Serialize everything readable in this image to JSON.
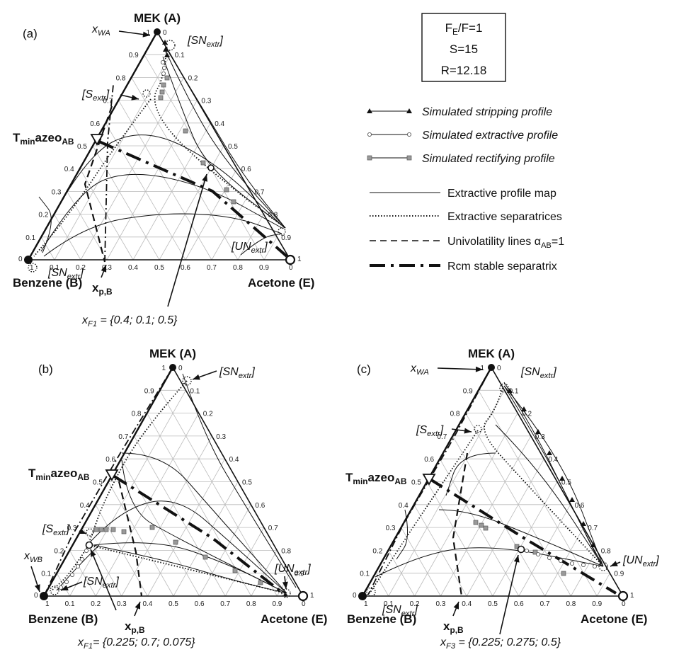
{
  "panels": [
    {
      "letter": "(a)",
      "top_label": "MEK (A)",
      "left_label": "Benzene (B)",
      "right_label": "Acetone (E)",
      "azeo_label": "T",
      "azeo_sub1": "min",
      "azeo_mid": "azeo",
      "azeo_sub2": "AB",
      "feed_label": "x",
      "feed_sub": "F1",
      "feed_value": " = {0.4; 0.1; 0.5}",
      "xp_label": "x",
      "xp_sub": "p,B",
      "annotations": [
        {
          "main": "x",
          "sub": "WA",
          "wrap": false
        },
        {
          "main": "SN",
          "sub": "extr",
          "wrap": true
        },
        {
          "main": "S",
          "sub": "extr",
          "wrap": true
        },
        {
          "main": "SN",
          "sub": "extr",
          "wrap": true
        },
        {
          "main": "UN",
          "sub": "extr",
          "wrap": true
        }
      ]
    },
    {
      "letter": "(b)",
      "top_label": "MEK (A)",
      "left_label": "Benzene (B)",
      "right_label": "Acetone (E)",
      "azeo_label": "T",
      "azeo_sub1": "min",
      "azeo_mid": "azeo",
      "azeo_sub2": "AB",
      "feed_label": "x",
      "feed_sub": "F1",
      "feed_value": "= {0.225; 0.7; 0.075}",
      "xp_label": "x",
      "xp_sub": "p,B",
      "annotations": [
        {
          "main": "SN",
          "sub": "extr",
          "wrap": true
        },
        {
          "main": "S",
          "sub": "extr",
          "wrap": true
        },
        {
          "main": "x",
          "sub": "WB",
          "wrap": false
        },
        {
          "main": "SN",
          "sub": "extr",
          "wrap": true
        },
        {
          "main": "UN",
          "sub": "extr",
          "wrap": true
        }
      ]
    },
    {
      "letter": "(c)",
      "top_label": "MEK (A)",
      "left_label": "Benzene (B)",
      "right_label": "Acetone (E)",
      "azeo_label": "T",
      "azeo_sub1": "min",
      "azeo_mid": "azeo",
      "azeo_sub2": "AB",
      "feed_label": "x",
      "feed_sub": "F3",
      "feed_value": " = {0.225; 0.275; 0.5}",
      "xp_label": "x",
      "xp_sub": "p,B",
      "annotations": [
        {
          "main": "x",
          "sub": "WA",
          "wrap": false
        },
        {
          "main": "SN",
          "sub": "extr",
          "wrap": true
        },
        {
          "main": "S",
          "sub": "extr",
          "wrap": true
        },
        {
          "main": "UN",
          "sub": "extr",
          "wrap": true
        },
        {
          "main": "SN",
          "sub": "extr",
          "wrap": true
        }
      ]
    }
  ],
  "ticks": {
    "left_values": [
      "0.1",
      "0.2",
      "0.3",
      "0.4",
      "0.5",
      "0.6",
      "0.7",
      "0.8",
      "0.9"
    ],
    "bottom_values": [
      "0.9",
      "0.8",
      "0.7",
      "0.6",
      "0.5",
      "0.4",
      "0.3",
      "0.2",
      "0.1"
    ],
    "right_values": [
      "0.1",
      "0.2",
      "0.3",
      "0.4",
      "0.5",
      "0.6",
      "0.7",
      "0.8",
      "0.9"
    ],
    "zero": "0",
    "one": "1"
  },
  "parameter_box": {
    "line1_main": "F",
    "line1_sub": "E",
    "line1_rest": "/F=1",
    "line2": "S=15",
    "line3": "R=12.18"
  },
  "legend": [
    {
      "style": "stripping",
      "label": "Simulated stripping profile",
      "italic": true
    },
    {
      "style": "extractive",
      "label": "Simulated extractive profile",
      "italic": true
    },
    {
      "style": "rectifying",
      "label": "Simulated rectifying profile",
      "italic": true
    },
    {
      "style": "map",
      "label": "Extractive profile map",
      "italic": false
    },
    {
      "style": "separatrix",
      "label": "Extractive separatrices",
      "italic": false
    },
    {
      "style": "univolatility",
      "label": "Univolatility lines α",
      "sub": "AB",
      "suffix": "=1",
      "italic": false
    },
    {
      "style": "rcm",
      "label": "Rcm stable separatrix",
      "italic": false
    }
  ],
  "colors": {
    "grid": "#bbbbbb",
    "ink": "#111111",
    "rectifying_marker": "#999999"
  }
}
